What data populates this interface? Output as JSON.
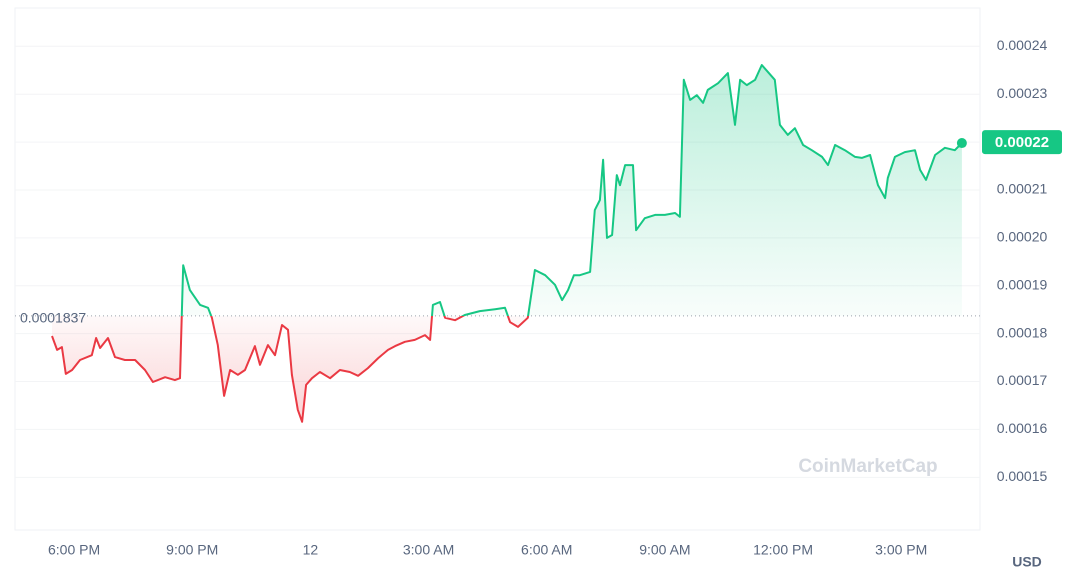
{
  "chart_data": {
    "type": "line",
    "x": [
      17.44,
      17.57,
      17.69,
      17.79,
      17.95,
      18.15,
      18.45,
      18.56,
      18.66,
      18.86,
      19.04,
      19.29,
      19.55,
      19.8,
      20.0,
      20.31,
      20.56,
      20.69,
      20.77,
      20.94,
      21.2,
      21.4,
      21.5,
      21.65,
      21.81,
      21.96,
      22.16,
      22.34,
      22.59,
      22.72,
      22.92,
      23.1,
      23.28,
      23.43,
      23.53,
      23.68,
      23.79,
      23.89,
      24.04,
      24.24,
      24.5,
      24.75,
      25.0,
      25.21,
      25.46,
      25.72,
      25.97,
      26.15,
      26.4,
      26.65,
      26.91,
      27.04,
      27.11,
      27.29,
      27.42,
      27.67,
      27.92,
      28.3,
      28.69,
      28.94,
      29.07,
      29.27,
      29.52,
      29.7,
      29.96,
      30.21,
      30.39,
      30.54,
      30.69,
      30.84,
      31.1,
      31.22,
      31.35,
      31.43,
      31.53,
      31.66,
      31.78,
      31.86,
      31.99,
      32.19,
      32.27,
      32.49,
      32.75,
      33.0,
      33.26,
      33.38,
      33.48,
      33.64,
      33.81,
      33.97,
      34.09,
      34.35,
      34.6,
      34.78,
      34.91,
      35.08,
      35.29,
      35.46,
      35.62,
      35.79,
      35.92,
      36.12,
      36.3,
      36.51,
      36.73,
      36.99,
      37.14,
      37.32,
      37.57,
      37.83,
      38.0,
      38.21,
      38.41,
      38.59,
      38.66,
      38.84,
      39.09,
      39.35,
      39.48,
      39.63,
      39.86,
      40.11,
      40.36,
      40.54
    ],
    "values": [
      0.0001795,
      0.0001766,
      0.0001772,
      0.0001716,
      0.0001724,
      0.0001745,
      0.0001755,
      0.0001791,
      0.000177,
      0.0001791,
      0.0001751,
      0.0001745,
      0.0001745,
      0.0001724,
      0.0001699,
      0.0001709,
      0.0001703,
      0.0001707,
      0.0001943,
      0.0001891,
      0.000186,
      0.0001854,
      0.0001833,
      0.0001776,
      0.000167,
      0.0001724,
      0.0001714,
      0.0001724,
      0.0001774,
      0.0001735,
      0.0001776,
      0.0001755,
      0.0001818,
      0.0001808,
      0.0001714,
      0.0001641,
      0.0001616,
      0.0001693,
      0.0001707,
      0.000172,
      0.0001707,
      0.0001724,
      0.000172,
      0.0001712,
      0.0001728,
      0.0001749,
      0.0001766,
      0.0001774,
      0.0001783,
      0.0001787,
      0.0001797,
      0.0001787,
      0.000186,
      0.0001866,
      0.0001833,
      0.0001828,
      0.0001839,
      0.0001847,
      0.0001851,
      0.0001854,
      0.0001824,
      0.0001814,
      0.0001833,
      0.0001933,
      0.0001922,
      0.0001902,
      0.000187,
      0.0001891,
      0.0001922,
      0.0001922,
      0.0001929,
      0.0002058,
      0.0002079,
      0.0002163,
      0.0002,
      0.0002006,
      0.0002131,
      0.000211,
      0.0002152,
      0.0002152,
      0.0002016,
      0.0002041,
      0.0002048,
      0.0002048,
      0.0002052,
      0.0002044,
      0.000233,
      0.0002288,
      0.0002298,
      0.0002282,
      0.0002309,
      0.0002323,
      0.0002344,
      0.0002236,
      0.000233,
      0.0002319,
      0.000233,
      0.0002361,
      0.0002346,
      0.000233,
      0.0002236,
      0.0002215,
      0.0002229,
      0.0002194,
      0.0002183,
      0.0002169,
      0.0002152,
      0.0002194,
      0.0002183,
      0.0002169,
      0.0002167,
      0.0002173,
      0.000211,
      0.0002083,
      0.0002125,
      0.0002169,
      0.0002179,
      0.0002183,
      0.0002142,
      0.0002121,
      0.0002173,
      0.0002188,
      0.0002183,
      0.0002198
    ],
    "color_up": "#16c784",
    "color_down": "#ea3943",
    "reference_line": 0.0001837,
    "current_price": 0.00022,
    "xlim": [
      16.5,
      41.0
    ],
    "xticks": [
      {
        "value": 18,
        "label": "6:00 PM"
      },
      {
        "value": 21,
        "label": "9:00 PM"
      },
      {
        "value": 24,
        "label": "12"
      },
      {
        "value": 27,
        "label": "3:00 AM"
      },
      {
        "value": 30,
        "label": "6:00 AM"
      },
      {
        "value": 33,
        "label": "9:00 AM"
      },
      {
        "value": 36,
        "label": "12:00 PM"
      },
      {
        "value": 39,
        "label": "3:00 PM"
      }
    ],
    "ylim": [
      0.000139,
      0.000248
    ],
    "yticks": [
      0.00015,
      0.00016,
      0.00017,
      0.00018,
      0.00019,
      {
        "value": 0.0002,
        "label": "0.00020"
      },
      0.00021,
      0.00022,
      0.00023,
      0.00024
    ],
    "y_axis_label": "USD",
    "watermark": "CoinMarketCap",
    "grid": true
  }
}
